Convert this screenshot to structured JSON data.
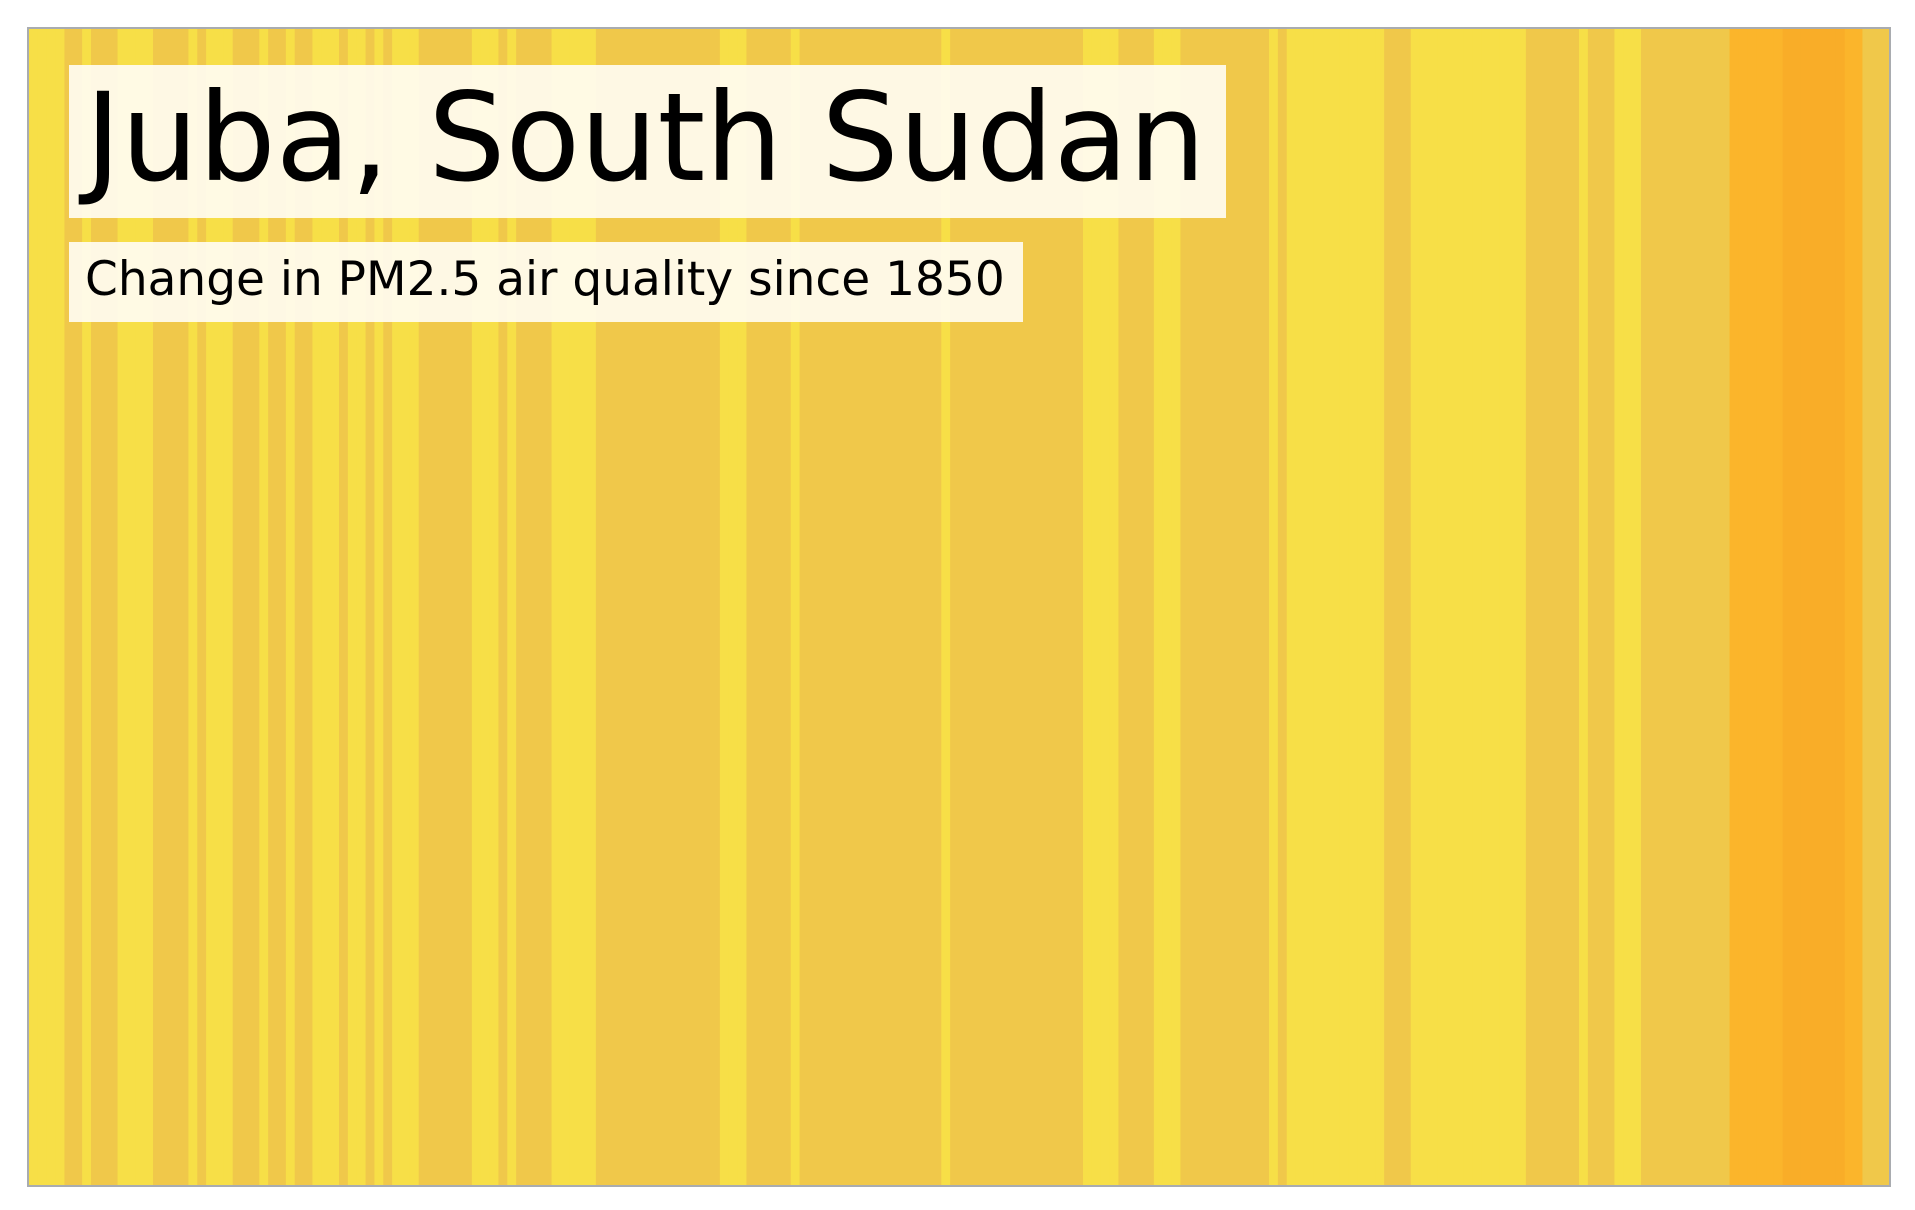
{
  "title": "Juba, South Sudan",
  "subtitle": "Change in PM2.5 air quality since 1850",
  "colors": {
    "level_1": "#f7df47",
    "level_2": "#f0c84a",
    "level_3": "#fbb52b",
    "level_4": "#f9ad28",
    "frame_border": "#a9acb0",
    "label_background": "#fffcf0"
  },
  "chart_data": {
    "type": "heatmap",
    "title": "Juba, South Sudan",
    "subtitle": "Change in PM2.5 air quality since 1850",
    "x_start": 1850,
    "color_levels": [
      "level_1",
      "level_2",
      "level_3",
      "level_4"
    ],
    "values": [
      1,
      1,
      1,
      1,
      2,
      2,
      1,
      2,
      2,
      2,
      1,
      1,
      1,
      1,
      2,
      2,
      2,
      2,
      1,
      2,
      1,
      1,
      1,
      2,
      2,
      2,
      1,
      2,
      2,
      1,
      2,
      2,
      1,
      1,
      1,
      2,
      1,
      1,
      2,
      1,
      2,
      1,
      1,
      1,
      2,
      2,
      2,
      2,
      2,
      2,
      1,
      1,
      1,
      2,
      1,
      2,
      2,
      2,
      2,
      1,
      1,
      1,
      1,
      1,
      2,
      2,
      2,
      2,
      2,
      2,
      2,
      2,
      2,
      2,
      2,
      2,
      2,
      2,
      1,
      1,
      1,
      2,
      2,
      2,
      2,
      2,
      1,
      2,
      2,
      2,
      2,
      2,
      2,
      2,
      2,
      2,
      2,
      2,
      2,
      2,
      2,
      2,
      2,
      1,
      2,
      2,
      2,
      2,
      2,
      2,
      2,
      2,
      2,
      2,
      2,
      2,
      2,
      2,
      2,
      1,
      1,
      1,
      1,
      2,
      2,
      2,
      2,
      1,
      1,
      1,
      2,
      2,
      2,
      2,
      2,
      2,
      2,
      2,
      2,
      2,
      1,
      2,
      1,
      1,
      1,
      1,
      1,
      1,
      1,
      1,
      1,
      1,
      1,
      2,
      2,
      2,
      1,
      1,
      1,
      1,
      1,
      1,
      1,
      1,
      1,
      1,
      1,
      1,
      1,
      2,
      2,
      2,
      2,
      2,
      2,
      1,
      2,
      2,
      2,
      1,
      1,
      1,
      2,
      2,
      2,
      2,
      2,
      2,
      2,
      2,
      2,
      2,
      3,
      3,
      3,
      3,
      3,
      3,
      4,
      4,
      4,
      4,
      4,
      4,
      4,
      3,
      3,
      2,
      2,
      2
    ]
  }
}
